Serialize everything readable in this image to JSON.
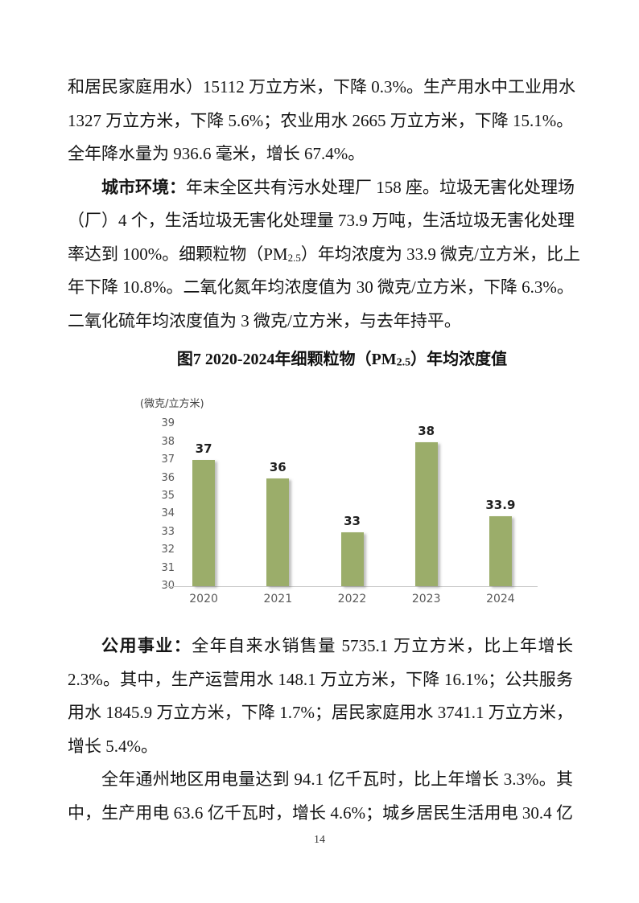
{
  "page": {
    "number": "14"
  },
  "paragraphs": [
    {
      "name": "water-usage",
      "indent_first": false,
      "justify_last": false,
      "lines": [
        [
          {
            "t": "和居民家庭用水）15112 万立方米，下降 0.3%。生产用水中工业用水"
          }
        ],
        [
          {
            "t": "1327 万立方米，下降 5.6%；农业用水 2665 万立方米，下降 15.1%。"
          }
        ],
        [
          {
            "t": "全年降水量为 936.6 毫米，增长 67.4%。"
          }
        ]
      ]
    },
    {
      "name": "urban-environment",
      "indent_first": true,
      "justify_last": false,
      "lines": [
        [
          {
            "t": "城市环境：",
            "b": true
          },
          {
            "t": "年末全区共有污水处理厂 158 座。垃圾无害化处理场"
          }
        ],
        [
          {
            "t": "（厂）4 个，生活垃圾无害化处理量 73.9 万吨，生活垃圾无害化处理"
          }
        ],
        [
          {
            "t": "率达到 100%。细颗粒物（PM"
          },
          {
            "t": "2.5",
            "sub": true
          },
          {
            "t": "）年均浓度为 33.9 微克/立方米，比上"
          }
        ],
        [
          {
            "t": "年下降 10.8%。二氧化氮年均浓度值为 30 微克/立方米，下降 6.3%。"
          }
        ],
        [
          {
            "t": "二氧化硫年均浓度值为 3 微克/立方米，与去年持平。"
          }
        ]
      ]
    },
    {
      "name": "public-utilities",
      "indent_first": true,
      "justify_last": false,
      "lines": [
        [
          {
            "t": "公用事业：",
            "b": true
          },
          {
            "t": "全年自来水销售量 5735.1 万立方米，比上年增长"
          }
        ],
        [
          {
            "t": "2.3%。其中，生产运营用水 148.1 万立方米，下降 16.1%；公共服务"
          }
        ],
        [
          {
            "t": "用水 1845.9 万立方米，下降 1.7%；居民家庭用水 3741.1 万立方米，"
          }
        ],
        [
          {
            "t": "增长 5.4%。"
          }
        ]
      ]
    },
    {
      "name": "electricity",
      "indent_first": true,
      "justify_last": true,
      "lines": [
        [
          {
            "t": "全年通州地区用电量达到 94.1 亿千瓦时，比上年增长 3.3%。其"
          }
        ],
        [
          {
            "t": "中，生产用电 63.6 亿千瓦时，增长 4.6%；城乡居民生活用电 30.4 亿"
          }
        ]
      ]
    }
  ],
  "chart_data": {
    "type": "bar",
    "title": "图7  2020-2024年细颗粒物（PM2.5）年均浓度值",
    "title_runs": [
      {
        "t": "图7  2020-2024年细颗粒物（PM"
      },
      {
        "t": "2.5",
        "sub": true
      },
      {
        "t": "）年均浓度值"
      }
    ],
    "unit_label": "(微克/立方米)",
    "categories": [
      "2020",
      "2021",
      "2022",
      "2023",
      "2024"
    ],
    "values": [
      37,
      36,
      33,
      38,
      33.9
    ],
    "data_labels": [
      "37",
      "36",
      "33",
      "38",
      "33.9"
    ],
    "ylim": [
      30,
      39
    ],
    "ytick_step": 1,
    "gridlines": false,
    "legend": false,
    "bar_color": "#9BAD6A",
    "axis_line_color": "#C9C9C9",
    "tick_label_color": "#595959",
    "data_label_color": "#1F1F1F"
  }
}
